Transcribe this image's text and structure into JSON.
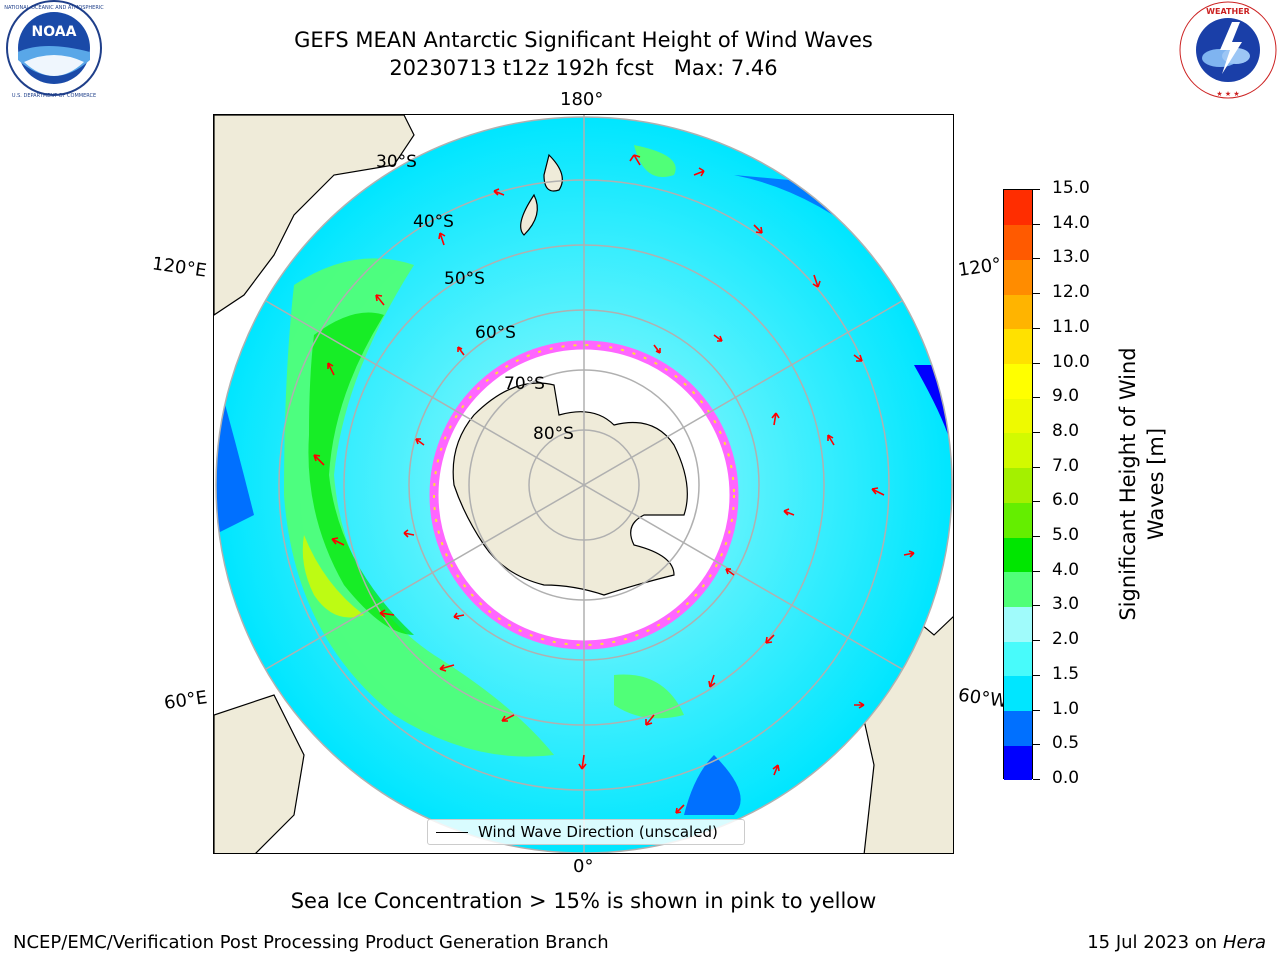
{
  "title": {
    "line1": "GEFS MEAN Antarctic Significant Height of Wind Waves",
    "line2": "20230713 t12z 192h fcst   Max: 7.46"
  },
  "logos": {
    "left": "noaa-logo",
    "left_text": "NATIONAL OCEANIC AND ATMOSPHERIC ADMINISTRATION U.S. DEPARTMENT OF COMMERCE",
    "left_center": "NOAA",
    "right": "national-weather-service-logo",
    "right_text": "NATIONAL WEATHER SERVICE"
  },
  "map": {
    "projection": "south-polar-stereographic",
    "longitude_labels": [
      "180°",
      "120°E",
      "120°",
      "60°E",
      "60°W",
      "0°"
    ],
    "latitude_labels": [
      "30°S",
      "40°S",
      "50°S",
      "60°S",
      "70°S",
      "80°S"
    ],
    "legend": "Wind Wave Direction (unscaled)",
    "arrow_color": "#ff0000"
  },
  "colorbar": {
    "label": "Significant Height of Wind Waves [m]",
    "min": 0.0,
    "max": 15.0,
    "ticks": [
      "15.0",
      "14.0",
      "13.0",
      "12.0",
      "11.0",
      "10.0",
      "9.0",
      "8.0",
      "7.0",
      "6.0",
      "5.0",
      "4.0",
      "3.0",
      "2.0",
      "1.5",
      "1.0",
      "0.5",
      "0.0"
    ],
    "colors": [
      "#0000ff",
      "#0070ff",
      "#00e6ff",
      "#48fbfb",
      "#a0fbfb",
      "#50ff78",
      "#00e600",
      "#64ee00",
      "#a4f000",
      "#d2fa00",
      "#eefa00",
      "#ffff00",
      "#ffe100",
      "#ffb400",
      "#ff8c00",
      "#ff5a00",
      "#ff2d00",
      "#ff0000"
    ],
    "land_color": "#efebd9",
    "ice_color": "#ff66ff"
  },
  "note": "Sea Ice Concentration > 15% is shown in pink to yellow",
  "footer": {
    "left": "NCEP/EMC/Verification Post Processing Product Generation Branch",
    "right_date": "15 Jul 2023 on ",
    "right_host": "Hera"
  }
}
